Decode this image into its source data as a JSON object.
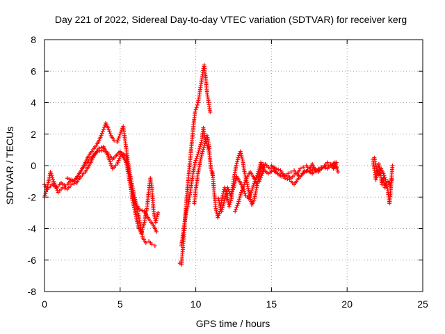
{
  "chart_data": {
    "type": "scatter",
    "title": "Day 221 of 2022, Sidereal Day-to-day VTEC variation (SDTVAR) for receiver kerg",
    "xlabel": "GPS time / hours",
    "ylabel": "SDTVAR / TECUs",
    "xlim": [
      0,
      25
    ],
    "ylim": [
      -8,
      8
    ],
    "xticks": [
      "0",
      "5",
      "10",
      "15",
      "20",
      "25"
    ],
    "yticks": [
      "-8",
      "-6",
      "-4",
      "-2",
      "0",
      "2",
      "4",
      "6",
      "8"
    ],
    "grid": true,
    "marker": "plus",
    "color": "#ff0000",
    "series": [
      {
        "name": "SDTVAR",
        "segments": [
          [
            [
              0.0,
              -1.2
            ],
            [
              0.2,
              -1.5
            ],
            [
              0.5,
              -1.2
            ],
            [
              0.8,
              -1.4
            ],
            [
              1.1,
              -1.1
            ],
            [
              1.4,
              -1.3
            ],
            [
              1.7,
              -1.0
            ],
            [
              2.0,
              -0.9
            ],
            [
              2.3,
              -0.5
            ],
            [
              2.6,
              0.0
            ],
            [
              2.9,
              0.6
            ],
            [
              3.2,
              1.0
            ],
            [
              3.5,
              1.4
            ],
            [
              3.7,
              1.8
            ],
            [
              3.9,
              2.3
            ],
            [
              4.05,
              2.7
            ],
            [
              4.2,
              2.4
            ],
            [
              4.4,
              1.9
            ],
            [
              4.6,
              1.6
            ],
            [
              4.8,
              1.5
            ],
            [
              5.0,
              2.0
            ],
            [
              5.2,
              2.5
            ],
            [
              5.3,
              1.8
            ],
            [
              5.5,
              0.4
            ],
            [
              5.7,
              -0.8
            ],
            [
              5.9,
              -1.8
            ],
            [
              6.1,
              -2.6
            ],
            [
              6.3,
              -3.6
            ],
            [
              6.5,
              -4.6
            ],
            [
              6.7,
              -4.9
            ],
            [
              6.9,
              -4.8
            ],
            [
              7.1,
              -5.0
            ],
            [
              7.3,
              -5.1
            ]
          ],
          [
            [
              0.0,
              -2.0
            ],
            [
              0.2,
              -1.3
            ],
            [
              0.4,
              -0.4
            ],
            [
              0.6,
              -1.0
            ],
            [
              0.9,
              -1.7
            ],
            [
              1.2,
              -1.4
            ],
            [
              1.5,
              -1.5
            ],
            [
              1.8,
              -1.2
            ],
            [
              2.1,
              -1.1
            ],
            [
              2.4,
              -0.7
            ],
            [
              2.7,
              -0.4
            ],
            [
              3.0,
              0.1
            ],
            [
              3.3,
              0.7
            ],
            [
              3.6,
              1.1
            ],
            [
              3.9,
              1.2
            ],
            [
              4.2,
              0.6
            ],
            [
              4.5,
              -0.2
            ],
            [
              4.8,
              0.1
            ],
            [
              5.1,
              0.8
            ],
            [
              5.4,
              0.6
            ],
            [
              5.6,
              -0.6
            ],
            [
              5.8,
              -2.1
            ],
            [
              6.0,
              -3.0
            ],
            [
              6.2,
              -3.9
            ],
            [
              6.4,
              -4.3
            ],
            [
              6.6,
              -3.6
            ],
            [
              6.8,
              -2.5
            ],
            [
              6.9,
              -1.5
            ],
            [
              7.0,
              -0.8
            ],
            [
              7.1,
              -1.4
            ],
            [
              7.2,
              -2.8
            ],
            [
              7.35,
              -3.6
            ],
            [
              7.5,
              -3.0
            ]
          ],
          [
            [
              1.5,
              -0.8
            ],
            [
              2.0,
              -1.0
            ],
            [
              2.5,
              -0.2
            ],
            [
              3.0,
              0.4
            ],
            [
              3.5,
              0.9
            ],
            [
              4.0,
              1.0
            ],
            [
              4.5,
              0.4
            ],
            [
              5.0,
              0.9
            ],
            [
              5.4,
              0.2
            ],
            [
              5.7,
              -1.4
            ],
            [
              6.0,
              -2.4
            ],
            [
              6.3,
              -2.8
            ],
            [
              6.6,
              -2.9
            ],
            [
              6.9,
              -3.4
            ],
            [
              7.2,
              -3.8
            ],
            [
              7.4,
              -4.2
            ]
          ],
          [
            [
              8.95,
              -6.2
            ],
            [
              9.05,
              -6.3
            ],
            [
              9.15,
              -5.2
            ],
            [
              9.25,
              -4.0
            ],
            [
              9.35,
              -2.6
            ],
            [
              9.45,
              -1.4
            ],
            [
              9.55,
              -0.4
            ],
            [
              9.65,
              0.6
            ],
            [
              9.75,
              1.6
            ],
            [
              9.85,
              2.6
            ],
            [
              9.95,
              3.4
            ],
            [
              10.05,
              3.7
            ],
            [
              10.15,
              4.0
            ],
            [
              10.25,
              4.6
            ],
            [
              10.35,
              5.2
            ],
            [
              10.45,
              5.8
            ],
            [
              10.55,
              6.4
            ],
            [
              10.65,
              5.6
            ],
            [
              10.75,
              4.6
            ],
            [
              10.85,
              4.0
            ],
            [
              10.95,
              3.4
            ]
          ],
          [
            [
              9.05,
              -5.1
            ],
            [
              9.2,
              -4.0
            ],
            [
              9.35,
              -3.0
            ],
            [
              9.5,
              -2.5
            ],
            [
              9.65,
              -1.6
            ],
            [
              9.8,
              -0.6
            ],
            [
              9.95,
              0.2
            ],
            [
              10.1,
              0.6
            ],
            [
              10.25,
              1.1
            ],
            [
              10.4,
              1.6
            ],
            [
              10.5,
              2.4
            ],
            [
              10.6,
              1.8
            ],
            [
              10.75,
              1.3
            ],
            [
              10.9,
              0.8
            ],
            [
              11.0,
              -0.2
            ],
            [
              11.1,
              -0.6
            ]
          ],
          [
            [
              9.9,
              -2.4
            ],
            [
              10.0,
              -1.5
            ],
            [
              10.15,
              -0.5
            ],
            [
              10.3,
              0.3
            ],
            [
              10.45,
              0.9
            ],
            [
              10.6,
              1.4
            ],
            [
              10.75,
              1.9
            ],
            [
              10.9,
              1.1
            ]
          ],
          [
            [
              11.1,
              -0.4
            ],
            [
              11.2,
              -1.5
            ],
            [
              11.3,
              -2.6
            ],
            [
              11.45,
              -3.3
            ],
            [
              11.6,
              -2.9
            ],
            [
              11.75,
              -2.0
            ],
            [
              11.9,
              -1.4
            ],
            [
              12.05,
              -1.8
            ],
            [
              12.2,
              -2.6
            ],
            [
              12.35,
              -2.1
            ],
            [
              12.5,
              -0.9
            ],
            [
              12.65,
              -0.1
            ],
            [
              12.8,
              0.5
            ],
            [
              12.95,
              0.9
            ],
            [
              13.1,
              0.3
            ],
            [
              13.25,
              -0.6
            ],
            [
              13.4,
              -1.2
            ],
            [
              13.55,
              -1.8
            ],
            [
              13.7,
              -2.5
            ],
            [
              13.85,
              -2.2
            ],
            [
              14.0,
              -1.5
            ],
            [
              14.15,
              -0.8
            ],
            [
              14.3,
              -0.2
            ],
            [
              14.5,
              0.1
            ],
            [
              14.7,
              0.0
            ],
            [
              14.9,
              -0.2
            ],
            [
              15.1,
              -0.1
            ],
            [
              15.3,
              -0.4
            ],
            [
              15.5,
              -0.6
            ],
            [
              15.7,
              -0.5
            ],
            [
              15.9,
              -0.6
            ],
            [
              16.1,
              -0.5
            ],
            [
              16.3,
              -0.4
            ],
            [
              16.5,
              -0.3
            ],
            [
              16.7,
              -0.5
            ],
            [
              16.9,
              -0.2
            ],
            [
              17.1,
              -0.1
            ],
            [
              17.3,
              0.0
            ],
            [
              17.5,
              -0.2
            ],
            [
              17.7,
              0.1
            ],
            [
              17.9,
              -0.3
            ],
            [
              18.1,
              -0.2
            ],
            [
              18.3,
              -0.1
            ],
            [
              18.5,
              0.0
            ],
            [
              18.7,
              0.2
            ],
            [
              18.9,
              0.1
            ],
            [
              19.1,
              -0.2
            ],
            [
              19.3,
              0.2
            ]
          ],
          [
            [
              11.5,
              -2.1
            ],
            [
              11.7,
              -2.9
            ],
            [
              11.9,
              -2.2
            ],
            [
              12.1,
              -1.4
            ],
            [
              12.3,
              -1.9
            ],
            [
              12.5,
              -1.4
            ],
            [
              12.7,
              -0.7
            ],
            [
              12.9,
              -1.0
            ],
            [
              13.1,
              -1.4
            ],
            [
              13.3,
              -1.9
            ],
            [
              13.5,
              -2.1
            ],
            [
              13.7,
              -1.6
            ],
            [
              13.9,
              -1.0
            ],
            [
              14.1,
              -0.5
            ],
            [
              14.3,
              0.2
            ],
            [
              14.5,
              -0.3
            ],
            [
              14.8,
              -0.5
            ],
            [
              15.1,
              -0.3
            ],
            [
              15.4,
              -0.5
            ],
            [
              15.7,
              -0.7
            ],
            [
              16.0,
              -0.6
            ],
            [
              16.3,
              -0.8
            ],
            [
              16.6,
              -0.5
            ],
            [
              16.9,
              -0.7
            ],
            [
              17.2,
              -0.3
            ],
            [
              17.5,
              -0.4
            ],
            [
              17.8,
              -0.2
            ],
            [
              18.1,
              -0.4
            ],
            [
              18.4,
              -0.1
            ],
            [
              18.7,
              -0.2
            ],
            [
              19.0,
              0.1
            ],
            [
              19.3,
              -0.1
            ]
          ],
          [
            [
              12.6,
              -2.9
            ],
            [
              12.8,
              -2.4
            ],
            [
              13.0,
              -1.7
            ],
            [
              13.2,
              -1.2
            ],
            [
              13.4,
              -0.7
            ],
            [
              13.6,
              -0.4
            ],
            [
              13.8,
              -0.7
            ],
            [
              14.0,
              -1.1
            ],
            [
              14.2,
              -1.0
            ],
            [
              14.4,
              -0.5
            ],
            [
              14.6,
              0.1
            ],
            [
              14.8,
              -0.1
            ],
            [
              15.0,
              0.0
            ],
            [
              15.3,
              -0.2
            ],
            [
              15.6,
              -0.3
            ],
            [
              15.9,
              -0.8
            ],
            [
              16.2,
              -0.9
            ],
            [
              16.5,
              -1.2
            ],
            [
              16.8,
              -0.8
            ],
            [
              17.1,
              -0.5
            ],
            [
              17.4,
              -0.3
            ],
            [
              17.7,
              -0.5
            ],
            [
              18.0,
              -0.3
            ],
            [
              18.3,
              -0.2
            ],
            [
              18.6,
              0.0
            ],
            [
              18.9,
              0.0
            ],
            [
              19.2,
              0.2
            ],
            [
              19.4,
              -0.4
            ]
          ],
          [
            [
              21.7,
              0.4
            ],
            [
              21.8,
              -0.2
            ],
            [
              21.9,
              -0.9
            ],
            [
              22.0,
              -0.5
            ],
            [
              22.1,
              0.1
            ],
            [
              22.2,
              -0.4
            ],
            [
              22.3,
              -1.2
            ],
            [
              22.4,
              -0.8
            ],
            [
              22.5,
              -1.4
            ],
            [
              22.6,
              -1.1
            ],
            [
              22.7,
              -1.6
            ],
            [
              22.8,
              -2.4
            ],
            [
              22.9,
              -1.4
            ],
            [
              22.95,
              -0.6
            ],
            [
              23.0,
              0.0
            ]
          ],
          [
            [
              21.8,
              0.5
            ],
            [
              21.95,
              -0.3
            ],
            [
              22.1,
              -0.6
            ],
            [
              22.25,
              -0.2
            ],
            [
              22.4,
              -0.5
            ],
            [
              22.55,
              -0.9
            ],
            [
              22.7,
              -1.0
            ],
            [
              22.85,
              -1.3
            ],
            [
              22.95,
              -0.9
            ]
          ]
        ]
      }
    ]
  }
}
